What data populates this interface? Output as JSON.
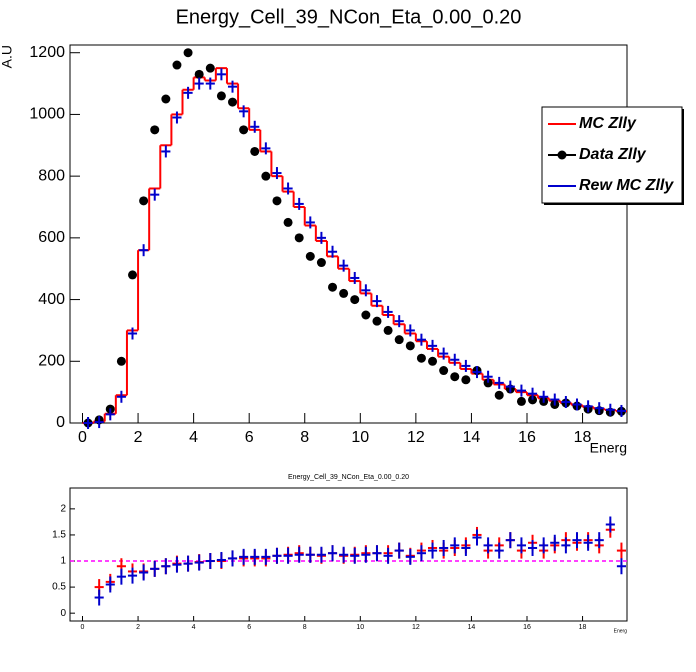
{
  "chart_data": [
    {
      "type": "histogram",
      "title": "Energy_Cell_39_NCon_Eta_0.00_0.20",
      "x_label": "Energ",
      "y_label": "A.U",
      "bins": [
        0,
        0.4,
        0.8,
        1.2,
        1.6,
        2,
        2.4,
        2.8,
        3.2,
        3.6,
        4,
        4.4,
        4.8,
        5.2,
        5.6,
        6,
        6.4,
        6.8,
        7.2,
        7.6,
        8,
        8.4,
        8.8,
        9.2,
        9.6,
        10,
        10.4,
        10.8,
        11.2,
        11.6,
        12,
        12.4,
        12.8,
        13.2,
        13.6,
        14,
        14.4,
        14.8,
        15.2,
        15.6,
        16,
        16.4,
        16.8,
        17.2,
        17.6,
        18,
        18.4,
        18.8,
        19.2,
        19.6
      ],
      "xlim": [
        -0.45,
        19.6
      ],
      "xticks": [
        0,
        2,
        4,
        6,
        8,
        10,
        12,
        14,
        16,
        18
      ],
      "ylim": [
        0,
        1225
      ],
      "yticks": [
        0,
        200,
        400,
        600,
        800,
        1000,
        1200
      ],
      "legend": "right",
      "series": [
        {
          "name": "MC Zlly",
          "color": "#ff0000",
          "style": "step",
          "values": [
            0,
            5,
            30,
            90,
            300,
            560,
            760,
            900,
            1000,
            1080,
            1120,
            1110,
            1150,
            1100,
            1020,
            950,
            880,
            800,
            750,
            700,
            640,
            590,
            540,
            500,
            460,
            420,
            380,
            350,
            320,
            290,
            265,
            240,
            215,
            195,
            175,
            160,
            140,
            125,
            110,
            100,
            90,
            80,
            72,
            65,
            58,
            52,
            46,
            42,
            38
          ]
        },
        {
          "name": "Data Zlly",
          "color": "#000000",
          "style": "marker",
          "values": [
            0,
            10,
            45,
            200,
            480,
            720,
            950,
            1050,
            1160,
            1200,
            1130,
            1150,
            1060,
            1040,
            950,
            880,
            800,
            720,
            650,
            600,
            540,
            520,
            440,
            420,
            400,
            350,
            330,
            300,
            270,
            250,
            210,
            200,
            170,
            150,
            140,
            170,
            130,
            90,
            110,
            70,
            75,
            70,
            60,
            65,
            55,
            45,
            40,
            35,
            38
          ]
        },
        {
          "name": "Rew MC Zlly",
          "color": "#0000cc",
          "style": "cross",
          "values": [
            0,
            3,
            28,
            85,
            290,
            560,
            740,
            880,
            990,
            1070,
            1100,
            1100,
            1130,
            1090,
            1010,
            960,
            890,
            810,
            760,
            710,
            650,
            600,
            555,
            510,
            470,
            430,
            395,
            360,
            330,
            300,
            270,
            250,
            225,
            205,
            185,
            165,
            150,
            130,
            118,
            105,
            95,
            85,
            76,
            68,
            60,
            54,
            48,
            43,
            39
          ]
        }
      ]
    },
    {
      "type": "histogram",
      "title": "Energy_Cell_39_NCon_Eta_0.00_0.20",
      "x_label": "Energ",
      "bins": [
        0,
        0.4,
        0.8,
        1.2,
        1.6,
        2,
        2.4,
        2.8,
        3.2,
        3.6,
        4,
        4.4,
        4.8,
        5.2,
        5.6,
        6,
        6.4,
        6.8,
        7.2,
        7.6,
        8,
        8.4,
        8.8,
        9.2,
        9.6,
        10,
        10.4,
        10.8,
        11.2,
        11.6,
        12,
        12.4,
        12.8,
        13.2,
        13.6,
        14,
        14.4,
        14.8,
        15.2,
        15.6,
        16,
        16.4,
        16.8,
        17.2,
        17.6,
        18,
        18.4,
        18.8,
        19.2,
        19.6
      ],
      "xlim": [
        -0.45,
        19.6
      ],
      "xticks": [
        0,
        2,
        4,
        6,
        8,
        10,
        12,
        14,
        16,
        18
      ],
      "ylim": [
        -0.15,
        2.4
      ],
      "yticks": [
        0,
        0.5,
        1,
        1.5,
        2
      ],
      "ref_line": 1,
      "ref_color": "#ff00ff",
      "series": [
        {
          "color": "#ff0000",
          "style": "cross",
          "values": [
            null,
            0.5,
            0.6,
            0.9,
            0.8,
            0.8,
            0.85,
            0.9,
            0.95,
            0.95,
            0.98,
            1.0,
            1.0,
            1.05,
            1.05,
            1.05,
            1.05,
            1.1,
            1.12,
            1.15,
            1.12,
            1.1,
            1.15,
            1.1,
            1.12,
            1.15,
            1.15,
            1.15,
            1.2,
            1.1,
            1.2,
            1.25,
            1.2,
            1.25,
            1.3,
            1.5,
            1.2,
            1.3,
            1.4,
            1.2,
            1.35,
            1.2,
            1.3,
            1.4,
            1.35,
            1.4,
            1.3,
            1.6,
            1.2
          ]
        },
        {
          "color": "#0000cc",
          "style": "cross",
          "values": [
            null,
            0.3,
            0.55,
            0.7,
            0.72,
            0.78,
            0.85,
            0.9,
            0.93,
            0.95,
            0.97,
            1.0,
            1.02,
            1.05,
            1.08,
            1.08,
            1.08,
            1.1,
            1.1,
            1.12,
            1.12,
            1.12,
            1.15,
            1.12,
            1.1,
            1.12,
            1.15,
            1.1,
            1.2,
            1.08,
            1.15,
            1.2,
            1.25,
            1.3,
            1.25,
            1.45,
            1.3,
            1.2,
            1.4,
            1.3,
            1.25,
            1.3,
            1.35,
            1.3,
            1.4,
            1.35,
            1.4,
            1.7,
            0.9
          ]
        }
      ]
    }
  ]
}
